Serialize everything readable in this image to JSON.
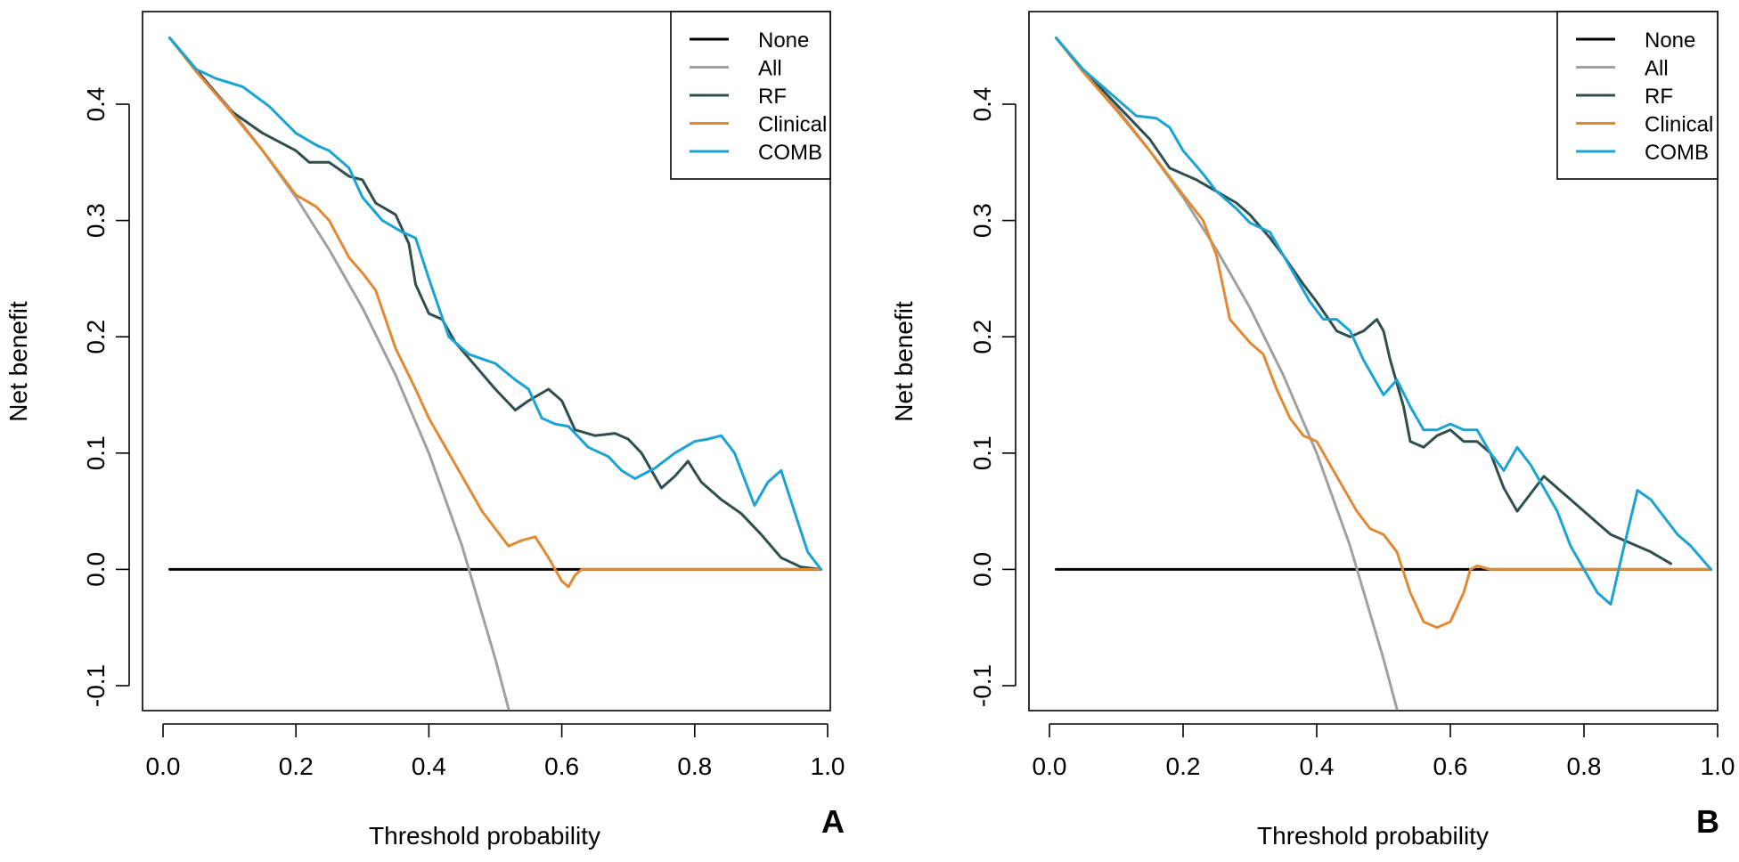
{
  "figure": {
    "panel_letters": [
      "A",
      "B"
    ]
  },
  "colors": {
    "none": "#000000",
    "all": "#a0a0a0",
    "rf": "#2f4f4f",
    "clinical": "#e28a33",
    "comb": "#1aa3d3"
  },
  "chart_data": [
    {
      "panel": "A",
      "type": "line",
      "title": "",
      "xlabel": "Threshold probability",
      "ylabel": "Net benefit",
      "xlim": [
        0,
        1
      ],
      "ylim": [
        -0.12,
        0.48
      ],
      "xticks": [
        0.0,
        0.2,
        0.4,
        0.6,
        0.8,
        1.0
      ],
      "xtick_labels": [
        "0.0",
        "0.2",
        "0.4",
        "0.6",
        "0.8",
        "1.0"
      ],
      "yticks": [
        -0.1,
        0.0,
        0.1,
        0.2,
        0.3,
        0.4
      ],
      "ytick_labels": [
        "-0.1",
        "0.0",
        "0.1",
        "0.2",
        "0.3",
        "0.4"
      ],
      "legend": {
        "position": "top-right",
        "entries": [
          "None",
          "All",
          "RF",
          "Clinical",
          "COMB"
        ]
      },
      "series": [
        {
          "name": "None",
          "color": "#000000",
          "x": [
            0.01,
            0.99
          ],
          "y": [
            0,
            0
          ]
        },
        {
          "name": "All",
          "color": "#a0a0a0",
          "x": [
            0.01,
            0.05,
            0.1,
            0.15,
            0.2,
            0.25,
            0.3,
            0.35,
            0.4,
            0.45,
            0.5,
            0.52
          ],
          "y": [
            0.457,
            0.429,
            0.397,
            0.36,
            0.32,
            0.275,
            0.225,
            0.167,
            0.1,
            0.02,
            -0.077,
            -0.12
          ]
        },
        {
          "name": "RF",
          "color": "#2f4f4f",
          "x": [
            0.01,
            0.05,
            0.1,
            0.15,
            0.2,
            0.22,
            0.25,
            0.28,
            0.3,
            0.32,
            0.35,
            0.37,
            0.38,
            0.4,
            0.42,
            0.44,
            0.47,
            0.5,
            0.53,
            0.55,
            0.58,
            0.6,
            0.62,
            0.65,
            0.68,
            0.7,
            0.72,
            0.75,
            0.77,
            0.79,
            0.81,
            0.84,
            0.87,
            0.9,
            0.93,
            0.96,
            0.99
          ],
          "y": [
            0.457,
            0.43,
            0.395,
            0.375,
            0.36,
            0.35,
            0.35,
            0.338,
            0.335,
            0.315,
            0.305,
            0.28,
            0.245,
            0.22,
            0.215,
            0.195,
            0.175,
            0.155,
            0.137,
            0.145,
            0.155,
            0.145,
            0.12,
            0.115,
            0.117,
            0.112,
            0.1,
            0.07,
            0.08,
            0.093,
            0.075,
            0.06,
            0.048,
            0.03,
            0.01,
            0.002,
            0
          ]
        },
        {
          "name": "Clinical",
          "color": "#e28a33",
          "x": [
            0.01,
            0.05,
            0.1,
            0.15,
            0.2,
            0.23,
            0.25,
            0.28,
            0.3,
            0.32,
            0.35,
            0.38,
            0.4,
            0.43,
            0.45,
            0.48,
            0.5,
            0.52,
            0.54,
            0.56,
            0.58,
            0.6,
            0.61,
            0.62,
            0.63,
            0.65,
            0.99
          ],
          "y": [
            0.457,
            0.428,
            0.395,
            0.36,
            0.322,
            0.312,
            0.3,
            0.268,
            0.255,
            0.24,
            0.19,
            0.155,
            0.13,
            0.1,
            0.08,
            0.05,
            0.035,
            0.02,
            0.025,
            0.028,
            0.01,
            -0.01,
            -0.015,
            -0.005,
            0.0,
            0.0,
            0.0
          ]
        },
        {
          "name": "COMB",
          "color": "#1aa3d3",
          "x": [
            0.01,
            0.05,
            0.08,
            0.12,
            0.16,
            0.2,
            0.23,
            0.25,
            0.28,
            0.3,
            0.33,
            0.36,
            0.38,
            0.4,
            0.43,
            0.46,
            0.5,
            0.53,
            0.55,
            0.57,
            0.59,
            0.61,
            0.64,
            0.67,
            0.69,
            0.71,
            0.74,
            0.77,
            0.8,
            0.82,
            0.84,
            0.86,
            0.88,
            0.89,
            0.91,
            0.93,
            0.95,
            0.97,
            0.99
          ],
          "y": [
            0.457,
            0.43,
            0.422,
            0.415,
            0.398,
            0.375,
            0.365,
            0.36,
            0.345,
            0.32,
            0.3,
            0.29,
            0.285,
            0.25,
            0.2,
            0.185,
            0.177,
            0.163,
            0.155,
            0.13,
            0.125,
            0.123,
            0.105,
            0.097,
            0.085,
            0.078,
            0.087,
            0.1,
            0.11,
            0.112,
            0.115,
            0.1,
            0.07,
            0.055,
            0.075,
            0.085,
            0.05,
            0.015,
            0
          ]
        }
      ]
    },
    {
      "panel": "B",
      "type": "line",
      "title": "",
      "xlabel": "Threshold probability",
      "ylabel": "Net benefit",
      "xlim": [
        0,
        1
      ],
      "ylim": [
        -0.12,
        0.48
      ],
      "xticks": [
        0.0,
        0.2,
        0.4,
        0.6,
        0.8,
        1.0
      ],
      "xtick_labels": [
        "0.0",
        "0.2",
        "0.4",
        "0.6",
        "0.8",
        "1.0"
      ],
      "yticks": [
        -0.1,
        0.0,
        0.1,
        0.2,
        0.3,
        0.4
      ],
      "ytick_labels": [
        "-0.1",
        "0.0",
        "0.1",
        "0.2",
        "0.3",
        "0.4"
      ],
      "legend": {
        "position": "top-right",
        "entries": [
          "None",
          "All",
          "RF",
          "Clinical",
          "COMB"
        ]
      },
      "series": [
        {
          "name": "None",
          "color": "#000000",
          "x": [
            0.01,
            0.99
          ],
          "y": [
            0,
            0
          ]
        },
        {
          "name": "All",
          "color": "#a0a0a0",
          "x": [
            0.01,
            0.05,
            0.1,
            0.15,
            0.2,
            0.25,
            0.3,
            0.35,
            0.4,
            0.45,
            0.5,
            0.52
          ],
          "y": [
            0.457,
            0.429,
            0.397,
            0.36,
            0.32,
            0.275,
            0.225,
            0.167,
            0.1,
            0.02,
            -0.077,
            -0.12
          ]
        },
        {
          "name": "RF",
          "color": "#2f4f4f",
          "x": [
            0.01,
            0.05,
            0.1,
            0.15,
            0.18,
            0.2,
            0.22,
            0.25,
            0.28,
            0.3,
            0.33,
            0.35,
            0.38,
            0.4,
            0.43,
            0.45,
            0.47,
            0.49,
            0.5,
            0.51,
            0.53,
            0.54,
            0.56,
            0.58,
            0.6,
            0.62,
            0.64,
            0.66,
            0.68,
            0.7,
            0.72,
            0.74,
            0.76,
            0.78,
            0.8,
            0.82,
            0.84,
            0.86,
            0.88,
            0.9,
            0.93
          ],
          "y": [
            0.457,
            0.43,
            0.4,
            0.37,
            0.345,
            0.34,
            0.335,
            0.325,
            0.315,
            0.305,
            0.285,
            0.27,
            0.245,
            0.23,
            0.205,
            0.2,
            0.205,
            0.215,
            0.205,
            0.18,
            0.14,
            0.11,
            0.105,
            0.115,
            0.12,
            0.11,
            0.11,
            0.1,
            0.07,
            0.05,
            0.065,
            0.08,
            0.07,
            0.06,
            0.05,
            0.04,
            0.03,
            0.025,
            0.02,
            0.015,
            0.005
          ]
        },
        {
          "name": "Clinical",
          "color": "#e28a33",
          "x": [
            0.01,
            0.05,
            0.1,
            0.15,
            0.2,
            0.23,
            0.25,
            0.27,
            0.3,
            0.32,
            0.34,
            0.36,
            0.38,
            0.4,
            0.42,
            0.44,
            0.46,
            0.48,
            0.5,
            0.52,
            0.54,
            0.56,
            0.58,
            0.6,
            0.62,
            0.63,
            0.64,
            0.66,
            0.99
          ],
          "y": [
            0.457,
            0.428,
            0.395,
            0.36,
            0.322,
            0.3,
            0.27,
            0.215,
            0.195,
            0.185,
            0.155,
            0.13,
            0.115,
            0.11,
            0.09,
            0.07,
            0.05,
            0.035,
            0.03,
            0.015,
            -0.02,
            -0.045,
            -0.05,
            -0.045,
            -0.02,
            0.0,
            0.003,
            0.0,
            0.0
          ]
        },
        {
          "name": "COMB",
          "color": "#1aa3d3",
          "x": [
            0.01,
            0.05,
            0.1,
            0.13,
            0.16,
            0.18,
            0.2,
            0.23,
            0.25,
            0.28,
            0.3,
            0.33,
            0.35,
            0.37,
            0.39,
            0.41,
            0.43,
            0.45,
            0.47,
            0.5,
            0.52,
            0.54,
            0.56,
            0.58,
            0.6,
            0.62,
            0.64,
            0.66,
            0.68,
            0.7,
            0.72,
            0.74,
            0.76,
            0.78,
            0.8,
            0.82,
            0.84,
            0.86,
            0.88,
            0.9,
            0.92,
            0.94,
            0.96,
            0.99
          ],
          "y": [
            0.457,
            0.43,
            0.405,
            0.39,
            0.388,
            0.38,
            0.36,
            0.34,
            0.325,
            0.31,
            0.298,
            0.29,
            0.27,
            0.25,
            0.23,
            0.215,
            0.215,
            0.205,
            0.18,
            0.15,
            0.163,
            0.14,
            0.12,
            0.12,
            0.125,
            0.12,
            0.12,
            0.1,
            0.085,
            0.105,
            0.09,
            0.07,
            0.05,
            0.02,
            0.0,
            -0.02,
            -0.03,
            0.02,
            0.068,
            0.06,
            0.045,
            0.03,
            0.02,
            0.0
          ]
        }
      ]
    }
  ]
}
